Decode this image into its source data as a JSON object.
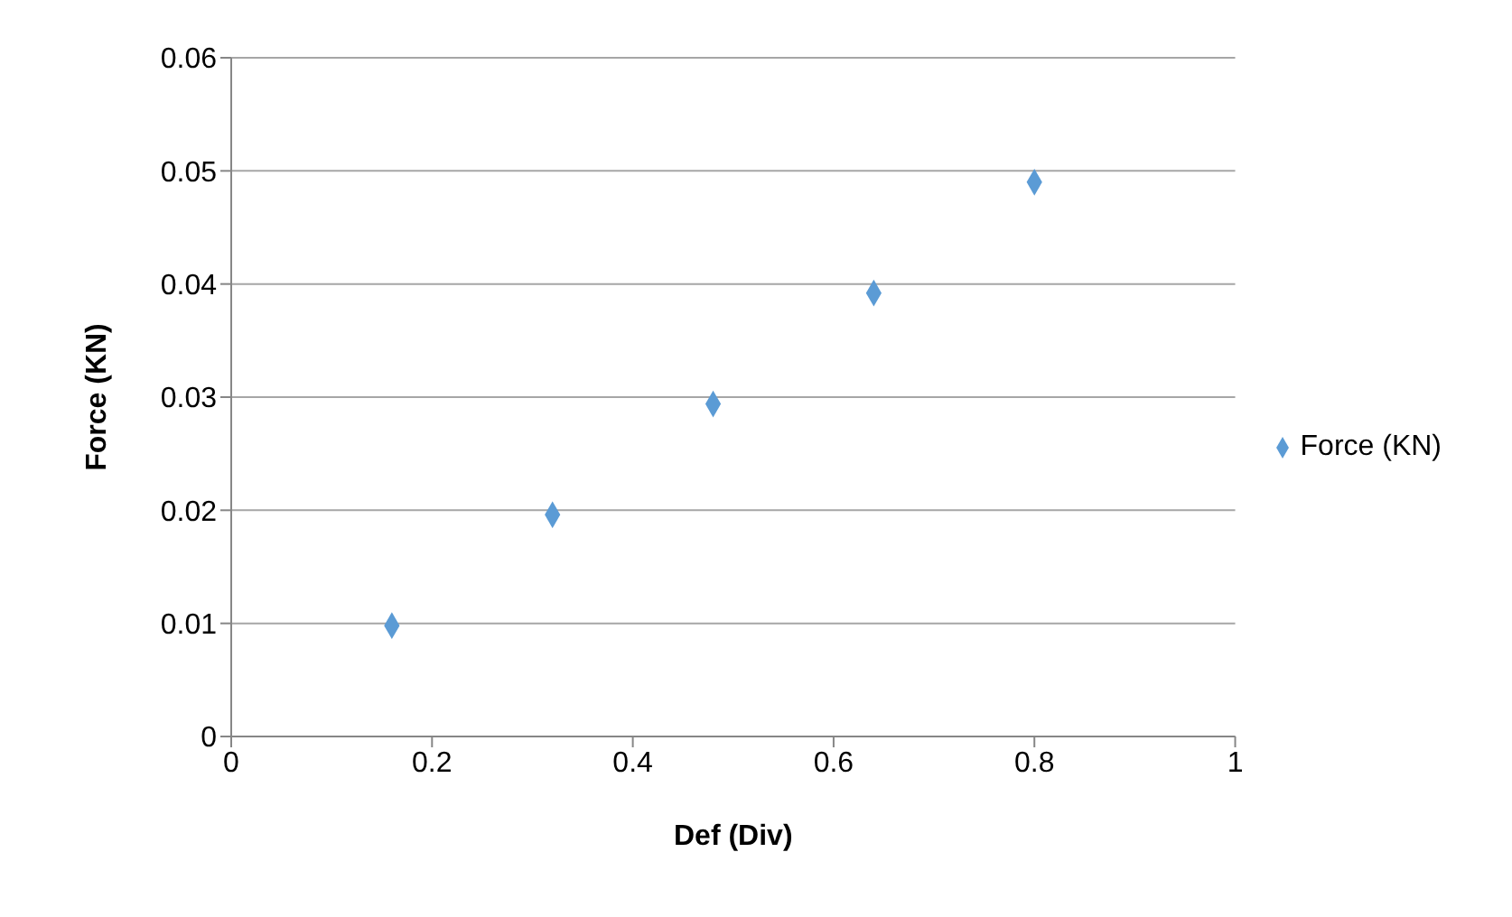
{
  "chart_data": {
    "type": "scatter",
    "xlabel": "Def (Div)",
    "ylabel": "Force (KN)",
    "x": [
      0.16,
      0.32,
      0.48,
      0.64,
      0.8
    ],
    "series": [
      {
        "name": "Force (KN)",
        "color": "#5b9bd5",
        "values": [
          0.0098,
          0.0196,
          0.0294,
          0.0392,
          0.049
        ]
      }
    ],
    "xlim": [
      0,
      1
    ],
    "xticks": [
      0,
      0.2,
      0.4,
      0.6,
      0.8,
      1
    ],
    "ylim": [
      0,
      0.06
    ],
    "yticks": [
      0,
      0.01,
      0.02,
      0.03,
      0.04,
      0.05,
      0.06
    ],
    "grid": "y",
    "legend": "right",
    "marker": "diamond"
  }
}
